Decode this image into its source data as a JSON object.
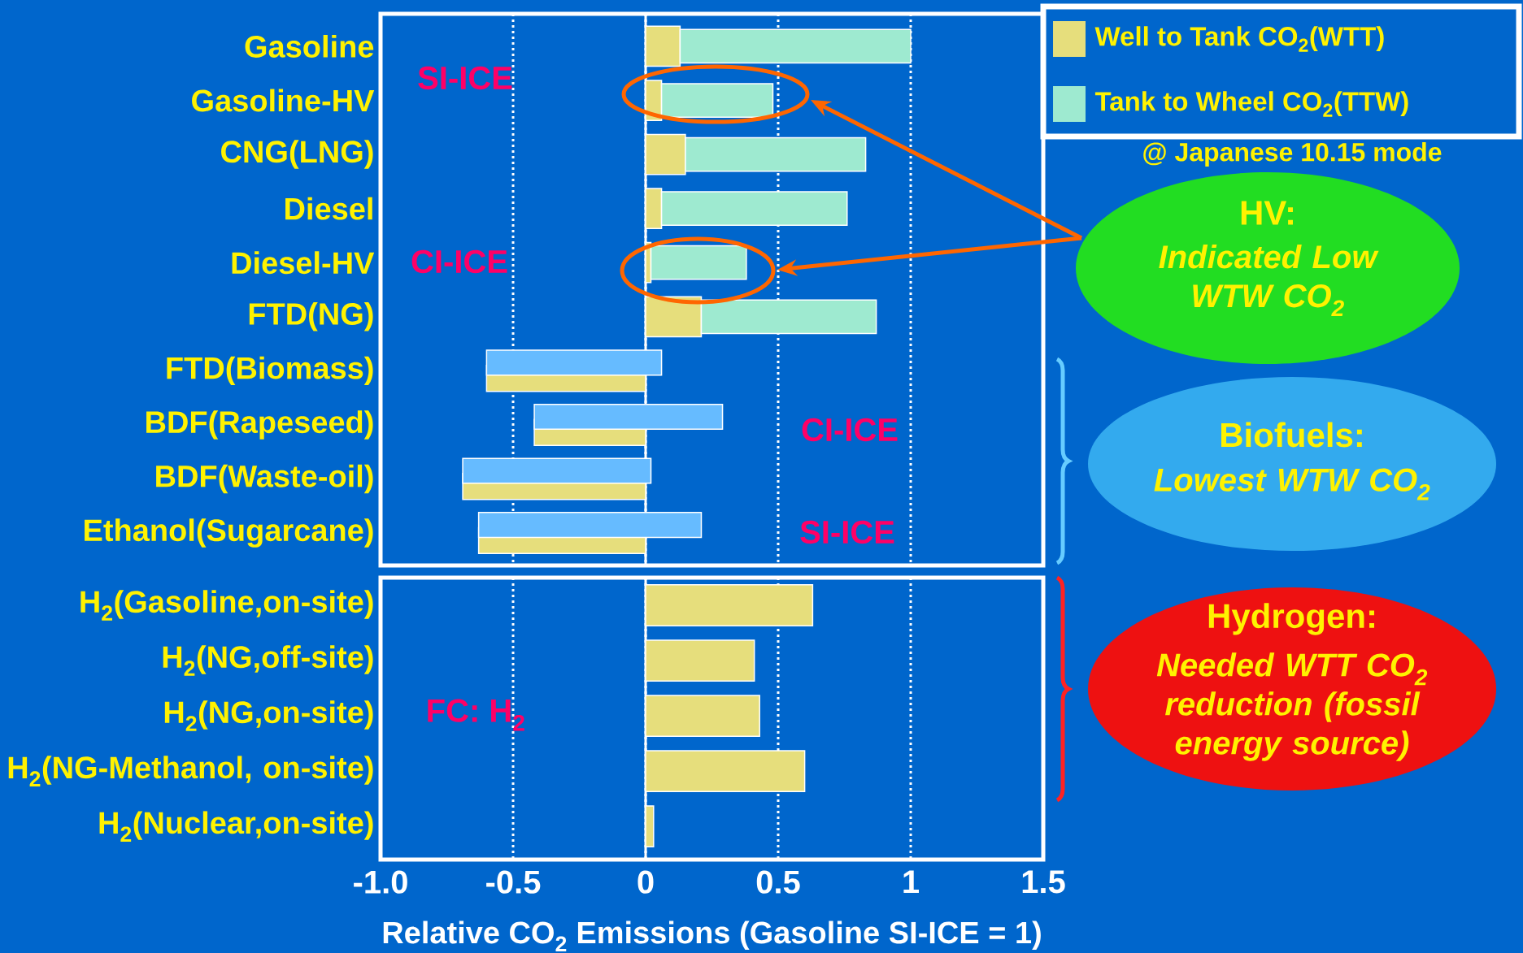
{
  "chart_data": [
    {
      "type": "bar",
      "orientation": "horizontal",
      "categories": [
        "Gasoline",
        "Gasoline-HV",
        "CNG(LNG)",
        "Diesel",
        "Diesel-HV",
        "FTD(NG)",
        "FTD(Biomass)",
        "BDF(Rapeseed)",
        "BDF(Waste-oil)",
        "Ethanol(Sugarcane)"
      ],
      "series": [
        {
          "name": "Well to Tank CO$_{2}$(WTT)",
          "color": "#e6de7c",
          "values": [
            0.13,
            0.06,
            0.15,
            0.06,
            0.02,
            0.21,
            -0.6,
            -0.42,
            -0.69,
            -0.63
          ]
        },
        {
          "name": "Tank to Wheel CO$_{2}$(TTW)",
          "color": "#9eead0",
          "colors": [
            "#9eead0",
            "#9eead0",
            "#9eead0",
            "#9eead0",
            "#9eead0",
            "#9eead0",
            "#66bbff",
            "#66bbff",
            "#66bbff",
            "#66bbff"
          ],
          "values": [
            0.87,
            0.42,
            0.68,
            0.7,
            0.36,
            0.66,
            0.66,
            0.71,
            0.71,
            0.84
          ],
          "base": [
            0.13,
            0.06,
            0.15,
            0.06,
            0.02,
            0.21,
            -0.6,
            -0.42,
            -0.69,
            -0.63
          ]
        }
      ],
      "xlim": [
        -1,
        1.5
      ],
      "xticks": [
        -1,
        -0.5,
        0,
        0.5,
        1,
        1.5
      ],
      "tick_labels": "y",
      "grid": "x",
      "legend": "top right",
      "ref_lines": [
        {
          "axis": "x",
          "value": 0,
          "line_style": "solid"
        }
      ],
      "annotations": [
        "SI-ICE",
        "CI-ICE",
        "CI-ICE",
        "SI-ICE",
        "HV:",
        "Indicated Low WTW CO$_{2}$",
        "Biofuels:",
        "Lowest WTW CO$_{2}$",
        "@ Japanese 10.15 mode"
      ]
    },
    {
      "type": "bar",
      "orientation": "horizontal",
      "categories": [
        "H$_{2}$(Gasoline,on-site)",
        "H$_{2}$(NG,off-site)",
        "H$_{2}$(NG,on-site)",
        "H$_{2}$(NG-Methanol, on-site)",
        "H$_{2}$(Nuclear,on-site)"
      ],
      "series": [
        {
          "color": "#e6de7c",
          "values": [
            0.63,
            0.41,
            0.43,
            0.6,
            0.03
          ]
        }
      ],
      "xlim": [
        -1,
        1.5
      ],
      "xticks": [
        {
          "value": -1,
          "label": "-1.0"
        },
        -0.5,
        0,
        0.5,
        1,
        1.5
      ],
      "grid": "x",
      "xlabel": "Relative CO$_{2}$ Emissions (Gasoline SI-ICE = 1)",
      "ref_lines": [
        {
          "axis": "x",
          "value": 0,
          "line_style": "solid"
        }
      ],
      "annotations": [
        "FC: H$_{2}$",
        "Hydrogen:",
        "Needed WTT CO$_{2}$ reduction (fossil energy source)"
      ]
    }
  ]
}
